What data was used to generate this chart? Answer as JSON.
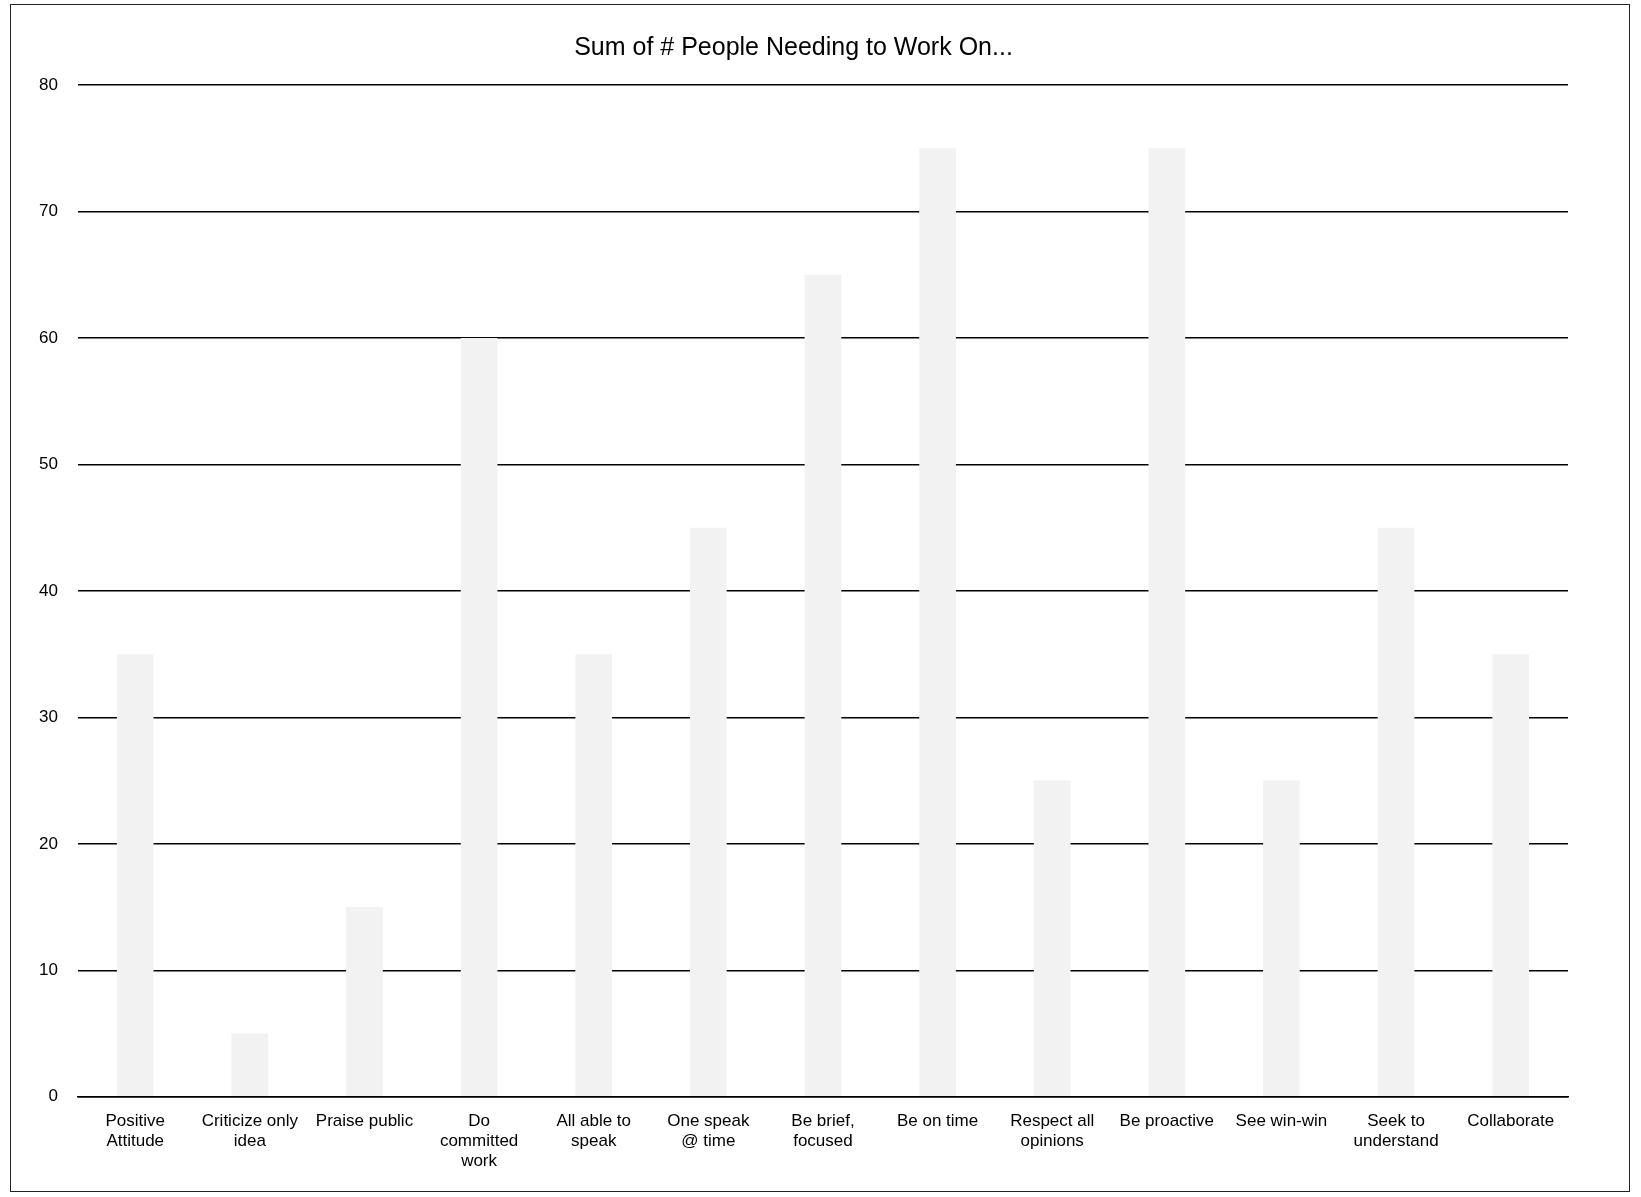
{
  "chart_data": {
    "type": "bar",
    "title": "Sum of # People Needing to Work On...",
    "categories": [
      "Positive Attitude",
      "Criticize only idea",
      "Praise public",
      "Do committed work",
      "All able to speak",
      "One speak @ time",
      "Be brief, focused",
      "Be on time",
      "Respect all opinions",
      "Be proactive",
      "See win-win",
      "Seek to understand",
      "Collaborate"
    ],
    "values": [
      35,
      5,
      15,
      60,
      35,
      45,
      65,
      75,
      25,
      75,
      25,
      45,
      35
    ],
    "color": "#f2f2f2",
    "ylim": [
      0,
      80
    ],
    "yticks": [
      0,
      10,
      20,
      30,
      40,
      50,
      60,
      70,
      80
    ],
    "grid": "y",
    "legend": false
  }
}
